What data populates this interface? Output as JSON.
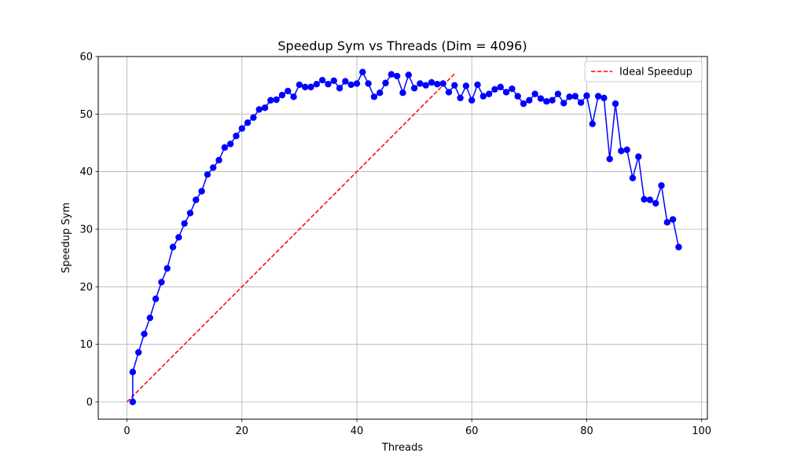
{
  "chart_data": {
    "type": "line",
    "title": "Speedup Sym vs Threads (Dim = 4096)",
    "xlabel": "Threads",
    "ylabel": "Speedup Sym",
    "xlim": [
      -5,
      101
    ],
    "ylim": [
      -3,
      60
    ],
    "xticks": [
      0,
      20,
      40,
      60,
      80,
      100
    ],
    "yticks": [
      0,
      10,
      20,
      30,
      40,
      50,
      60
    ],
    "grid": true,
    "legend_position": "top-right",
    "series": [
      {
        "name": "",
        "style": "line-with-markers",
        "color": "#0000ff",
        "x": [
          1,
          1,
          2,
          3,
          4,
          5,
          6,
          7,
          8,
          9,
          10,
          11,
          12,
          13,
          14,
          15,
          16,
          17,
          18,
          19,
          20,
          21,
          22,
          23,
          24,
          25,
          26,
          27,
          28,
          29,
          30,
          31,
          32,
          33,
          34,
          35,
          36,
          37,
          38,
          39,
          40,
          41,
          42,
          43,
          44,
          45,
          46,
          47,
          48,
          49,
          50,
          51,
          52,
          53,
          54,
          55,
          56,
          57,
          58,
          59,
          60,
          61,
          62,
          63,
          64,
          65,
          66,
          67,
          68,
          69,
          70,
          71,
          72,
          73,
          74,
          75,
          76,
          77,
          78,
          79,
          80,
          81,
          82,
          83,
          84,
          85,
          86,
          87,
          88,
          89,
          90,
          91,
          92,
          93,
          94,
          95,
          96
        ],
        "y": [
          0.0,
          5.2,
          8.6,
          11.8,
          14.6,
          17.9,
          20.8,
          23.2,
          26.9,
          28.6,
          31.0,
          32.8,
          35.1,
          36.6,
          39.5,
          40.7,
          42.0,
          44.2,
          44.8,
          46.2,
          47.5,
          48.5,
          49.4,
          50.8,
          51.1,
          52.4,
          52.5,
          53.3,
          54.0,
          53.0,
          55.1,
          54.7,
          54.7,
          55.2,
          55.9,
          55.2,
          55.8,
          54.5,
          55.7,
          55.1,
          55.3,
          57.3,
          55.3,
          53.0,
          53.7,
          55.4,
          56.9,
          56.6,
          53.7,
          56.8,
          54.5,
          55.3,
          55.0,
          55.5,
          55.2,
          55.3,
          53.8,
          55.0,
          52.8,
          54.9,
          52.4,
          55.1,
          53.1,
          53.5,
          54.3,
          54.7,
          53.8,
          54.4,
          53.1,
          51.8,
          52.4,
          53.5,
          52.7,
          52.2,
          52.4,
          53.5,
          51.9,
          53.0,
          53.1,
          52.0,
          53.2,
          48.3,
          53.1,
          52.8,
          42.2,
          51.8,
          43.6,
          43.8,
          38.9,
          42.6,
          35.2,
          35.1,
          34.5,
          37.6,
          31.2,
          31.7,
          26.9
        ]
      },
      {
        "name": "Ideal Speedup",
        "style": "dashed",
        "color": "#ff0000",
        "x": [
          0,
          57
        ],
        "y": [
          0,
          57
        ]
      }
    ]
  }
}
